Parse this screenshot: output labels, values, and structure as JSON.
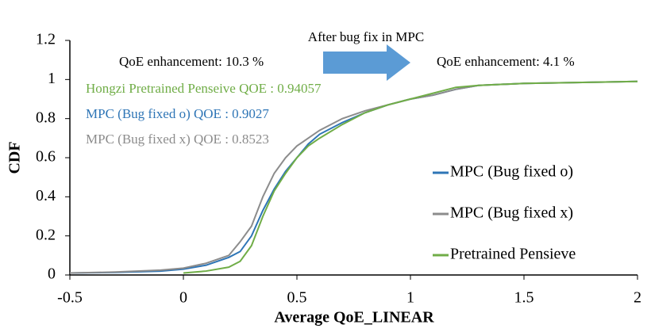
{
  "chart_data": {
    "type": "line",
    "x_label": "Average QoE_LINEAR",
    "y_label": "CDF",
    "x": [
      -0.5,
      -0.3,
      -0.1,
      0,
      0.1,
      0.2,
      0.25,
      0.3,
      0.35,
      0.4,
      0.45,
      0.5,
      0.55,
      0.6,
      0.7,
      0.8,
      0.9,
      1.0,
      1.1,
      1.2,
      1.3,
      1.5,
      2.0
    ],
    "series": [
      {
        "name": "MPC (Bug fixed o)",
        "color": "#2e75b6",
        "values": [
          0.01,
          0.013,
          0.02,
          0.03,
          0.05,
          0.09,
          0.12,
          0.2,
          0.33,
          0.44,
          0.53,
          0.6,
          0.67,
          0.72,
          0.78,
          0.83,
          0.87,
          0.9,
          0.92,
          0.95,
          0.97,
          0.98,
          0.99
        ]
      },
      {
        "name": "MPC (Bug fixed x)",
        "color": "#8c8c8c",
        "values": [
          0.01,
          0.015,
          0.025,
          0.035,
          0.06,
          0.1,
          0.17,
          0.25,
          0.4,
          0.52,
          0.6,
          0.66,
          0.7,
          0.74,
          0.8,
          0.84,
          0.87,
          0.9,
          0.92,
          0.95,
          0.97,
          0.98,
          0.99
        ]
      },
      {
        "name": "Pretrained Pensieve",
        "color": "#70ad47",
        "values": [
          null,
          null,
          null,
          0.01,
          0.02,
          0.04,
          0.07,
          0.15,
          0.3,
          0.43,
          0.52,
          0.6,
          0.66,
          0.7,
          0.77,
          0.83,
          0.87,
          0.9,
          0.93,
          0.96,
          0.97,
          0.98,
          0.99
        ]
      }
    ],
    "xlim": [
      -0.5,
      2
    ],
    "xticks": [
      -0.5,
      0,
      0.5,
      1,
      1.5,
      2
    ],
    "ylim": [
      0,
      1.2
    ],
    "yticks": [
      0,
      0.2,
      0.4,
      0.6,
      0.8,
      1,
      1.2
    ],
    "grid": false,
    "legend": "lower right",
    "annotations": [
      {
        "text": "After bug fix in MPC",
        "color": "#000000"
      },
      {
        "text": "QoE enhancement: 10.3 %",
        "color": "#000000"
      },
      {
        "text": "QoE enhancement: 4.1 %",
        "color": "#000000"
      },
      {
        "text": "Hongzi Pretrained Penseive QOE : 0.94057",
        "color": "#70ad47"
      },
      {
        "text": "MPC (Bug fixed o) QOE : 0.9027",
        "color": "#2e75b6"
      },
      {
        "text": "MPC (Bug fixed x) QOE : 0.8523",
        "color": "#8c8c8c"
      }
    ]
  }
}
